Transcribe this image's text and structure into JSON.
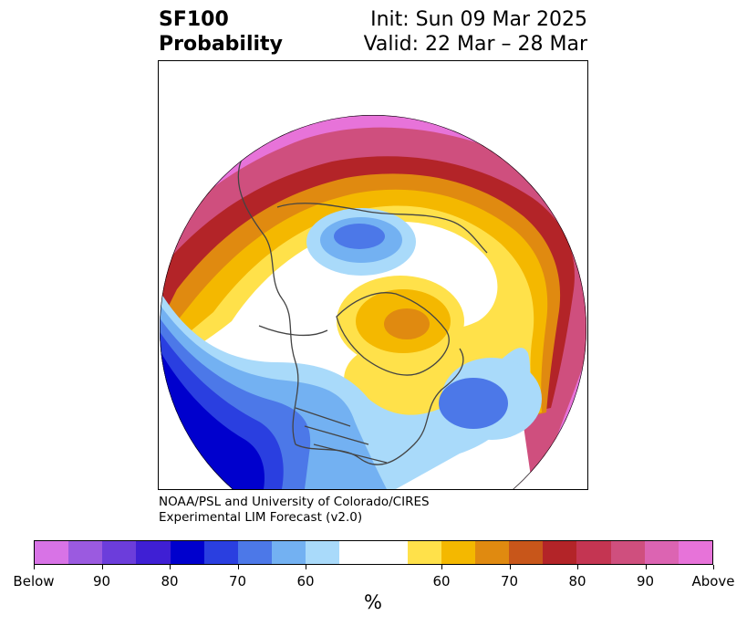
{
  "title": {
    "line1_left": "SF100",
    "line2_left": "Probability",
    "line1_right": "Init: Sun 09 Mar 2025",
    "line2_right": "Valid: 22 Mar – 28 Mar"
  },
  "credit": {
    "line1": "NOAA/PSL and University of Colorado/CIRES",
    "line2": "Experimental LIM Forecast (v2.0)"
  },
  "colorbar": {
    "unit": "%",
    "below_colors": [
      "#d873e6",
      "#9b5ae0",
      "#6c3ddb",
      "#3f1fd4",
      "#0000cd",
      "#2a3fe0",
      "#4c78e8",
      "#73b1f2",
      "#a9dafa"
    ],
    "neutral_color": "#ffffff",
    "above_colors": [
      "#ffe14a",
      "#f4b800",
      "#e08a10",
      "#c8561a",
      "#b32428",
      "#c43552",
      "#cf4f7e",
      "#dc64b2",
      "#e773d9"
    ],
    "labels": [
      "Below",
      "90",
      "80",
      "70",
      "60",
      "60",
      "70",
      "80",
      "90",
      "Above"
    ]
  },
  "map": {
    "projection": "north-polar-stereographic",
    "field": "SF100 probability",
    "colors": {
      "above_far": "#e773d9",
      "above_high": "#cf4f7e",
      "above_red": "#b32428",
      "above_orange": "#e08a10",
      "above_gold": "#f4b800",
      "above_yellow": "#ffe14a",
      "below_light": "#a9dafa",
      "below_sky": "#73b1f2",
      "below_mid": "#4c78e8",
      "below_blue": "#2a3fe0",
      "below_deep": "#0000cd",
      "coastline": "#444444"
    }
  }
}
